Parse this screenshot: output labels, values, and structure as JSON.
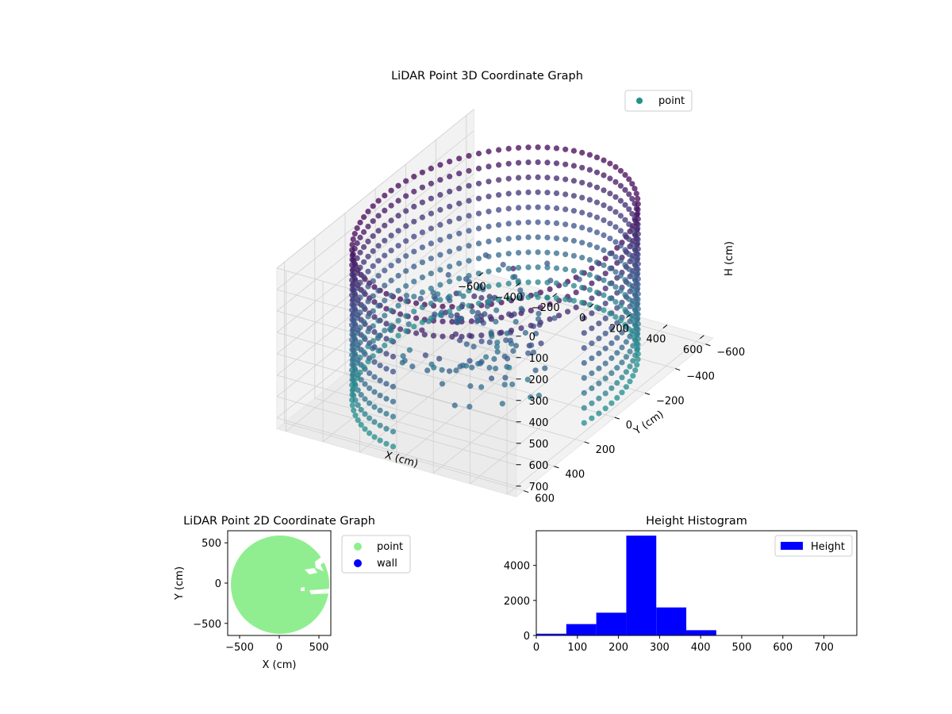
{
  "figure": {
    "background": "#ffffff"
  },
  "chart_data": [
    {
      "id": "scatter3d",
      "type": "scatter",
      "subtype": "3d",
      "title": "LiDAR Point 3D Coordinate Graph",
      "xlabel": "X (cm)",
      "ylabel": "Y (cm)",
      "zlabel": "H (cm)",
      "xticks": [
        "−600",
        "−400",
        "−200",
        "0",
        "200",
        "400",
        "600"
      ],
      "yticks": [
        "−600",
        "−400",
        "−200",
        "0",
        "200",
        "400",
        "600"
      ],
      "zticks": [
        "0",
        "100",
        "200",
        "300",
        "400",
        "500",
        "600",
        "700"
      ],
      "xlim": [
        -650,
        650
      ],
      "ylim": [
        -650,
        650
      ],
      "zlim": [
        0,
        750
      ],
      "z_inverted": true,
      "legend": {
        "label": "point",
        "position": "top-right"
      },
      "colormap": "viridis",
      "colors": {
        "low": "#440154",
        "mid": "#3b528b",
        "high": "#21918c"
      },
      "grid": true,
      "shape": "cylindrical wall ring of points with open gap toward +X/+Y side",
      "ring_radius_cm": 600,
      "wall_height_range_cm": [
        0,
        750
      ]
    },
    {
      "id": "scatter2d",
      "type": "scatter",
      "title": "LiDAR Point 2D Coordinate Graph",
      "xlabel": "X (cm)",
      "ylabel": "Y (cm)",
      "xticks": [
        "−500",
        "0",
        "500"
      ],
      "yticks": [
        "500",
        "0",
        "−500"
      ],
      "xlim": [
        -650,
        650
      ],
      "ylim": [
        -650,
        650
      ],
      "series": [
        {
          "name": "point",
          "color": "#90ee90"
        },
        {
          "name": "wall",
          "color": "#0000ff"
        }
      ],
      "legend": {
        "position": "outside-right"
      },
      "fill_radius_cm": 620
    },
    {
      "id": "histogram",
      "type": "bar",
      "subtype": "histogram",
      "title": "Height Histogram",
      "xlabel": "",
      "ylabel": "",
      "bin_edges": [
        0,
        73,
        146,
        219,
        292,
        365,
        438,
        511,
        584,
        657,
        730
      ],
      "counts": [
        100,
        650,
        1300,
        5700,
        1600,
        300,
        0,
        0,
        0,
        0
      ],
      "xticks": [
        "0",
        "100",
        "200",
        "300",
        "400",
        "500",
        "600",
        "700"
      ],
      "yticks": [
        "0",
        "2000",
        "4000"
      ],
      "xlim": [
        0,
        780
      ],
      "ylim": [
        0,
        5980
      ],
      "color": "#0000ff",
      "legend": {
        "label": "Height",
        "position": "top-right"
      }
    }
  ]
}
